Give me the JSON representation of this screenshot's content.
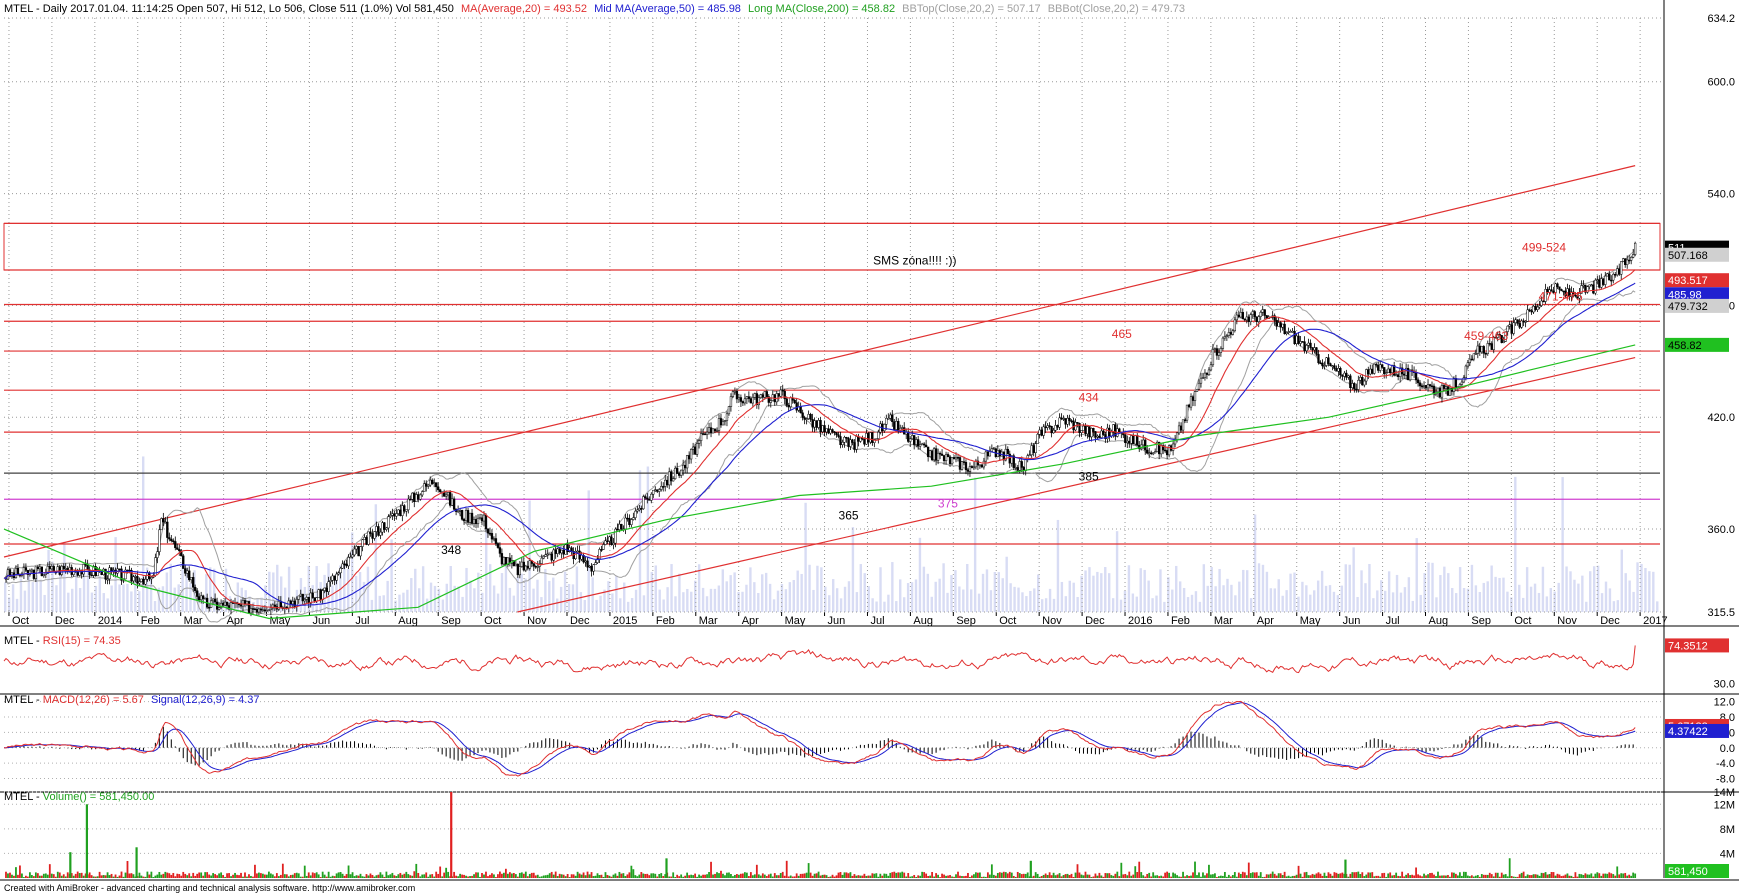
{
  "chart_data": [
    {
      "type": "candlestick",
      "symbol": "MTEL",
      "header": {
        "prefix": "MTEL - Daily 2017.01.04. 11:14:25 Open 507, Hi 512, Lo 506, Close 511 (1.0%) Vol 581,450",
        "ma20": "MA(Average,20) = 493.52",
        "ma50": "Mid MA(Average,50) = 485.98",
        "ma200": "Long MA(Close,200) = 458.82",
        "bbtop": "BBTop(Close,20,2) = 507.17",
        "bbbot": "BBBot(Close,20,2) = 479.73"
      },
      "ylim": [
        315.5,
        634.2
      ],
      "y_ticks": [
        "634.2",
        "600.0",
        "540.0",
        "480.0",
        "420.0",
        "360.0",
        "315.5"
      ],
      "x_ticks": [
        "Oct",
        "Dec",
        "2014",
        "Feb",
        "Mar",
        "Apr",
        "May",
        "Jun",
        "Jul",
        "Aug",
        "Sep",
        "Oct",
        "Nov",
        "Dec",
        "2015",
        "Feb",
        "Mar",
        "Apr",
        "May",
        "Jun",
        "Jul",
        "Aug",
        "Sep",
        "Oct",
        "Nov",
        "Dec",
        "2016",
        "Feb",
        "Mar",
        "Apr",
        "May",
        "Jun",
        "Jul",
        "Aug",
        "Sep",
        "Oct",
        "Nov",
        "Dec",
        "2017"
      ],
      "price_path": [
        [
          0.0,
          335
        ],
        [
          0.04,
          339
        ],
        [
          0.09,
          333
        ],
        [
          0.095,
          365
        ],
        [
          0.12,
          320
        ],
        [
          0.15,
          318
        ],
        [
          0.19,
          324
        ],
        [
          0.22,
          355
        ],
        [
          0.245,
          375
        ],
        [
          0.26,
          387
        ],
        [
          0.275,
          368
        ],
        [
          0.29,
          365
        ],
        [
          0.3,
          345
        ],
        [
          0.31,
          338
        ],
        [
          0.34,
          350
        ],
        [
          0.355,
          340
        ],
        [
          0.36,
          347
        ],
        [
          0.375,
          363
        ],
        [
          0.395,
          383
        ],
        [
          0.41,
          393
        ],
        [
          0.42,
          407
        ],
        [
          0.435,
          420
        ],
        [
          0.44,
          431
        ],
        [
          0.455,
          430
        ],
        [
          0.47,
          432
        ],
        [
          0.485,
          420
        ],
        [
          0.495,
          413
        ],
        [
          0.51,
          405
        ],
        [
          0.525,
          410
        ],
        [
          0.535,
          418
        ],
        [
          0.545,
          410
        ],
        [
          0.555,
          402
        ],
        [
          0.565,
          399
        ],
        [
          0.585,
          393
        ],
        [
          0.6,
          403
        ],
        [
          0.615,
          392
        ],
        [
          0.625,
          410
        ],
        [
          0.64,
          419
        ],
        [
          0.66,
          410
        ],
        [
          0.67,
          413
        ],
        [
          0.69,
          404
        ],
        [
          0.705,
          402
        ],
        [
          0.715,
          425
        ],
        [
          0.73,
          453
        ],
        [
          0.745,
          473
        ],
        [
          0.76,
          475
        ],
        [
          0.775,
          466
        ],
        [
          0.79,
          455
        ],
        [
          0.8,
          448
        ],
        [
          0.815,
          437
        ],
        [
          0.83,
          447
        ],
        [
          0.845,
          444
        ],
        [
          0.86,
          437
        ],
        [
          0.87,
          433
        ],
        [
          0.88,
          441
        ],
        [
          0.89,
          455
        ],
        [
          0.905,
          463
        ],
        [
          0.92,
          475
        ],
        [
          0.935,
          489
        ],
        [
          0.945,
          486
        ],
        [
          0.955,
          488
        ],
        [
          0.965,
          492
        ],
        [
          0.975,
          498
        ],
        [
          0.985,
          511
        ]
      ],
      "ma200_path": [
        [
          0.0,
          360
        ],
        [
          0.08,
          330
        ],
        [
          0.16,
          312
        ],
        [
          0.25,
          318
        ],
        [
          0.32,
          348
        ],
        [
          0.4,
          365
        ],
        [
          0.48,
          378
        ],
        [
          0.56,
          383
        ],
        [
          0.64,
          395
        ],
        [
          0.72,
          410
        ],
        [
          0.8,
          420
        ],
        [
          0.86,
          432
        ],
        [
          0.92,
          445
        ],
        [
          0.985,
          458.82
        ]
      ],
      "horizontal_levels": [
        {
          "value": 524,
          "color": "#e03030"
        },
        {
          "value": 499,
          "color": "#e03030"
        },
        {
          "value": 480.5,
          "color": "#e03030"
        },
        {
          "value": 471.5,
          "color": "#e03030"
        },
        {
          "value": 455.5,
          "color": "#e03030"
        },
        {
          "value": 434.5,
          "color": "#e03030"
        },
        {
          "value": 412,
          "color": "#e03030"
        },
        {
          "value": 390,
          "color": "#404040"
        },
        {
          "value": 376,
          "color": "#d040d0"
        },
        {
          "value": 352,
          "color": "#e03030"
        }
      ],
      "trend_lines": [
        {
          "from": [
            0.0,
            345
          ],
          "to": [
            0.985,
            555
          ]
        },
        {
          "from": [
            0.31,
            315.5
          ],
          "to": [
            0.985,
            452
          ]
        }
      ],
      "annotations": [
        {
          "text": "SMS zóna!!!! :))",
          "x": 0.55,
          "y": 502,
          "color": "#000000"
        },
        {
          "text": "499-524",
          "x": 0.93,
          "y": 509,
          "color": "#e03030"
        },
        {
          "text": "471-475",
          "x": 0.94,
          "y": 482.5,
          "color": "#e03030"
        },
        {
          "text": "465",
          "x": 0.675,
          "y": 462.5,
          "color": "#e03030"
        },
        {
          "text": "459-463",
          "x": 0.895,
          "y": 461.5,
          "color": "#e03030"
        },
        {
          "text": "434",
          "x": 0.655,
          "y": 428.5,
          "color": "#e03030"
        },
        {
          "text": "385",
          "x": 0.655,
          "y": 386,
          "color": "#000000"
        },
        {
          "text": "375",
          "x": 0.57,
          "y": 371.5,
          "color": "#d040d0"
        },
        {
          "text": "365",
          "x": 0.51,
          "y": 365,
          "color": "#000000"
        },
        {
          "text": "348",
          "x": 0.27,
          "y": 346.5,
          "color": "#000000"
        }
      ],
      "value_tags": [
        {
          "text": "511",
          "value": 511,
          "bg": "#000000",
          "fg": "#ffffff"
        },
        {
          "text": "507.168",
          "value": 507.168,
          "bg": "#d0d0d0",
          "fg": "#000000"
        },
        {
          "text": "493.517",
          "value": 493.517,
          "bg": "#e03030",
          "fg": "#ffffff"
        },
        {
          "text": "485.98",
          "value": 485.98,
          "bg": "#2020d0",
          "fg": "#ffffff"
        },
        {
          "text": "479.732",
          "value": 479.732,
          "bg": "#d0d0d0",
          "fg": "#000000"
        },
        {
          "text": "458.82",
          "value": 458.82,
          "bg": "#20c020",
          "fg": "#000000"
        }
      ],
      "colors": {
        "up": "#000000",
        "ma20": "#e03030",
        "ma50": "#2020d0",
        "ma200": "#20c020",
        "bb": "#a0a0a0"
      }
    },
    {
      "type": "line",
      "name": "RSI",
      "header": {
        "prefix": "MTEL - ",
        "rsi": "RSI(15) = 74.35"
      },
      "y_ticks": [
        "30.0"
      ],
      "tag": "74.3512",
      "tag_value": 74.3512,
      "ylim": [
        20,
        90
      ],
      "color": "#e03030"
    },
    {
      "type": "line",
      "name": "MACD",
      "header": {
        "prefix": "MTEL - ",
        "macd": "MACD(12,26) = 5.67",
        "signal": "Signal(12,26,9) = 4.37"
      },
      "y_ticks": [
        "12.0",
        "8.0",
        "4.0",
        "0.0",
        "-4.0",
        "-8.0"
      ],
      "ylim": [
        -11,
        14
      ],
      "tags": [
        {
          "text": "5.67182",
          "value": 5.67182,
          "bg": "#e03030"
        },
        {
          "text": "4.37422",
          "value": 4.37422,
          "bg": "#2020d0"
        }
      ],
      "colors": {
        "macd": "#e03030",
        "signal": "#2020d0",
        "hist": "#000000"
      }
    },
    {
      "type": "bar",
      "name": "Volume",
      "header": {
        "prefix": "MTEL - ",
        "vol": "Volume() = 581,450.00"
      },
      "y_ticks": [
        "14M",
        "12M",
        "8M",
        "4M"
      ],
      "ylim": [
        0,
        14000000
      ],
      "tag": "581,450",
      "spikes": [
        {
          "x": 0.05,
          "value": 12000000
        },
        {
          "x": 0.27,
          "value": 14000000
        },
        {
          "x": 0.08,
          "value": 5000000
        },
        {
          "x": 0.04,
          "value": 4200000
        },
        {
          "x": 0.4,
          "value": 3200000
        },
        {
          "x": 0.62,
          "value": 2800000
        },
        {
          "x": 0.81,
          "value": 3000000
        }
      ],
      "colors": {
        "up": "#20a020",
        "down": "#e02020"
      }
    }
  ],
  "footer": "Created with AmiBroker - advanced charting and technical analysis software. http://www.amibroker.com"
}
